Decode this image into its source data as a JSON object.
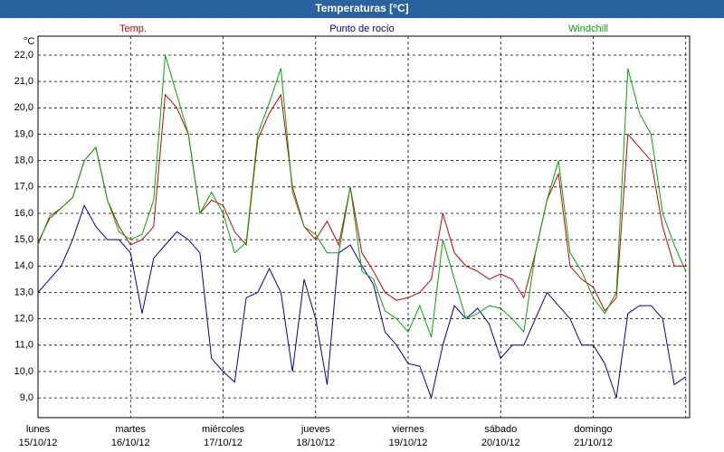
{
  "chart_data": {
    "type": "line",
    "title": "Temperaturas [°C]",
    "y_unit_label": "°C",
    "x": [
      0,
      3,
      6,
      9,
      12,
      15,
      18,
      21,
      24,
      27,
      30,
      33,
      36,
      39,
      42,
      45,
      48,
      51,
      54,
      57,
      60,
      63,
      66,
      69,
      72,
      75,
      78,
      81,
      84,
      87,
      90,
      93,
      96,
      99,
      102,
      105,
      108,
      111,
      114,
      117,
      120,
      123,
      126,
      129,
      132,
      135,
      138,
      141,
      144,
      147,
      150,
      153,
      156,
      159,
      162,
      165,
      168
    ],
    "xlim": [
      0,
      169
    ],
    "xticks": [
      0,
      24,
      48,
      72,
      96,
      120,
      144,
      168
    ],
    "x_day_labels": [
      "lunes",
      "martes",
      "miércoles",
      "jueves",
      "viernes",
      "sábado",
      "domingo"
    ],
    "x_date_labels": [
      "15/10/12",
      "16/10/12",
      "17/10/12",
      "18/10/12",
      "19/10/12",
      "20/10/12",
      "21/10/12"
    ],
    "ylim": [
      8.25,
      22.72
    ],
    "yticks": [
      {
        "value": 9,
        "label": "9,0"
      },
      {
        "value": 10,
        "label": "10,0"
      },
      {
        "value": 11,
        "label": "11,0"
      },
      {
        "value": 12,
        "label": "12,0"
      },
      {
        "value": 13,
        "label": "13,0"
      },
      {
        "value": 14,
        "label": "14,0"
      },
      {
        "value": 15,
        "label": "15,0"
      },
      {
        "value": 16,
        "label": "16,0"
      },
      {
        "value": 17,
        "label": "17,0"
      },
      {
        "value": 18,
        "label": "18,0"
      },
      {
        "value": 19,
        "label": "19,0"
      },
      {
        "value": 20,
        "label": "20,0"
      },
      {
        "value": 21,
        "label": "21,0"
      },
      {
        "value": 22,
        "label": "22,0"
      }
    ],
    "grid": true,
    "series": [
      {
        "name": "Temp.",
        "color": "#cc0000",
        "values": [
          14.9,
          15.8,
          16.2,
          16.6,
          18.0,
          18.5,
          16.5,
          15.5,
          14.8,
          15.0,
          15.5,
          20.5,
          20.0,
          19.0,
          16.0,
          16.5,
          16.3,
          15.3,
          14.8,
          18.8,
          19.8,
          20.5,
          17.0,
          15.5,
          15.0,
          15.7,
          14.8,
          17.0,
          14.5,
          13.8,
          13.0,
          12.7,
          12.8,
          13.0,
          13.5,
          16.0,
          14.5,
          14.0,
          13.8,
          13.5,
          13.7,
          13.5,
          12.8,
          14.5,
          16.5,
          17.5,
          14.0,
          13.5,
          13.2,
          12.3,
          12.8,
          19.0,
          18.5,
          18.0,
          15.5,
          14.0,
          14.0
        ]
      },
      {
        "name": "Punto de rocío",
        "color": "#0000aa",
        "values": [
          13.0,
          13.5,
          14.0,
          15.0,
          16.3,
          15.5,
          15.0,
          15.0,
          14.5,
          12.2,
          14.3,
          14.8,
          15.3,
          15.0,
          14.5,
          10.5,
          10.0,
          9.6,
          12.8,
          13.0,
          13.9,
          13.0,
          10.0,
          13.5,
          12.0,
          9.5,
          14.5,
          14.8,
          14.0,
          13.3,
          11.5,
          11.0,
          10.3,
          10.2,
          9.0,
          11.0,
          12.5,
          12.0,
          12.4,
          11.8,
          10.5,
          11.0,
          11.0,
          12.0,
          13.0,
          12.5,
          12.0,
          11.0,
          11.0,
          10.3,
          9.0,
          12.2,
          12.5,
          12.5,
          12.0,
          9.5,
          9.8
        ]
      },
      {
        "name": "Windchill",
        "color": "#00aa00",
        "values": [
          14.8,
          15.9,
          16.2,
          16.6,
          18.0,
          18.5,
          16.5,
          15.3,
          15.0,
          15.2,
          16.5,
          22.0,
          20.5,
          19.0,
          16.0,
          16.8,
          16.0,
          14.5,
          14.9,
          19.0,
          20.2,
          21.5,
          16.8,
          15.5,
          15.2,
          14.5,
          14.5,
          17.0,
          13.8,
          13.5,
          12.3,
          12.0,
          11.5,
          12.5,
          11.3,
          15.0,
          13.5,
          12.0,
          12.2,
          12.5,
          12.4,
          12.0,
          11.5,
          14.5,
          16.5,
          18.0,
          14.5,
          13.8,
          12.8,
          12.2,
          13.0,
          21.5,
          19.8,
          19.0,
          16.0,
          14.8,
          13.8
        ]
      }
    ]
  }
}
